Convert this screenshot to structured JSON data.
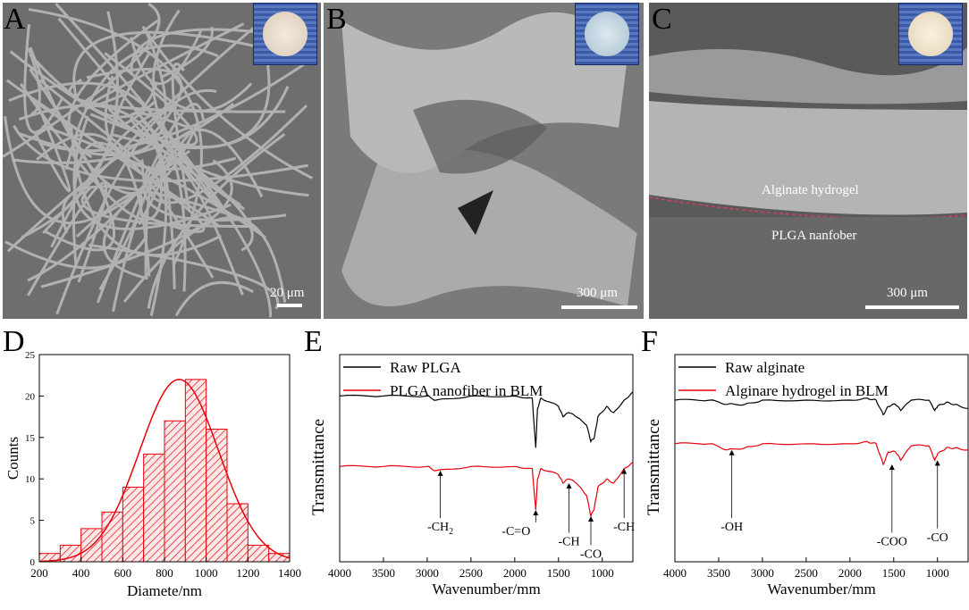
{
  "panels": {
    "A": {
      "letter": "A",
      "scale": "20 μm"
    },
    "B": {
      "letter": "B",
      "scale": "300 μm"
    },
    "C": {
      "letter": "C",
      "scale": "300 μm",
      "label_top": "Alginate hydrogel",
      "label_bottom": "PLGA nanfober"
    },
    "D": {
      "letter": "D"
    },
    "E": {
      "letter": "E"
    },
    "F": {
      "letter": "F"
    }
  },
  "colors": {
    "black_series": "#000000",
    "red_series": "#e8000b",
    "hist_fill": "#e8000b"
  },
  "chart_data": [
    {
      "type": "bar",
      "panel": "D",
      "xlabel": "Diamete/nm",
      "ylabel": "Counts",
      "xlim": [
        200,
        1400
      ],
      "ylim": [
        0,
        25
      ],
      "x_ticks": [
        200,
        400,
        600,
        800,
        1000,
        1200,
        1400
      ],
      "y_ticks": [
        0,
        5,
        10,
        15,
        20,
        25
      ],
      "bin_edges": [
        200,
        300,
        400,
        500,
        600,
        700,
        800,
        900,
        1000,
        1100,
        1200,
        1300,
        1400
      ],
      "values": [
        1,
        2,
        4,
        6,
        9,
        13,
        17,
        22,
        16,
        7,
        2,
        1
      ],
      "fit": {
        "type": "gaussian",
        "mean": 870,
        "sd": 190,
        "peak": 22
      }
    },
    {
      "type": "line",
      "panel": "E",
      "xlabel": "Wavenumber/mm",
      "ylabel": "Transmittance",
      "xlim": [
        4000,
        650
      ],
      "x_ticks": [
        4000,
        3500,
        3000,
        2500,
        2000,
        1500,
        1000
      ],
      "legend": "top-left",
      "series": [
        {
          "name": "Raw PLGA",
          "color": "#000000",
          "x": [
            4000,
            3500,
            3000,
            2900,
            2500,
            2000,
            1800,
            1760,
            1740,
            1700,
            1500,
            1450,
            1380,
            1300,
            1180,
            1130,
            1090,
            1050,
            950,
            870,
            750,
            650
          ],
          "y": [
            0.8,
            0.8,
            0.8,
            0.78,
            0.8,
            0.8,
            0.79,
            0.55,
            0.74,
            0.79,
            0.75,
            0.7,
            0.72,
            0.7,
            0.66,
            0.58,
            0.6,
            0.7,
            0.75,
            0.72,
            0.78,
            0.82
          ]
        },
        {
          "name": "PLGA nanofiber in BLM",
          "color": "#e8000b",
          "x": [
            4000,
            3500,
            3000,
            2900,
            2500,
            2000,
            1800,
            1760,
            1740,
            1700,
            1500,
            1450,
            1380,
            1300,
            1180,
            1130,
            1090,
            1050,
            950,
            870,
            750,
            650
          ],
          "y": [
            0.46,
            0.46,
            0.46,
            0.44,
            0.46,
            0.46,
            0.45,
            0.25,
            0.4,
            0.45,
            0.42,
            0.38,
            0.4,
            0.38,
            0.32,
            0.22,
            0.26,
            0.36,
            0.4,
            0.38,
            0.45,
            0.48
          ]
        }
      ],
      "annotations": [
        "-CH2",
        "-C=O",
        "-CH",
        "-CO",
        "-CH"
      ]
    },
    {
      "type": "line",
      "panel": "F",
      "xlabel": "Wavenumber/mm",
      "ylabel": "Transmittance",
      "xlim": [
        4000,
        650
      ],
      "x_ticks": [
        4000,
        3500,
        3000,
        2500,
        2000,
        1500,
        1000
      ],
      "legend": "top-left",
      "series": [
        {
          "name": "Raw alginate",
          "color": "#000000",
          "x": [
            4000,
            3600,
            3400,
            3200,
            3000,
            2500,
            2000,
            1800,
            1700,
            1620,
            1560,
            1480,
            1420,
            1300,
            1100,
            1030,
            1000,
            900,
            800,
            650
          ],
          "y": [
            0.78,
            0.78,
            0.76,
            0.76,
            0.78,
            0.78,
            0.78,
            0.79,
            0.78,
            0.71,
            0.75,
            0.76,
            0.73,
            0.78,
            0.78,
            0.73,
            0.75,
            0.77,
            0.76,
            0.74
          ]
        },
        {
          "name": "Alginare hydrogel in BLM",
          "color": "#e8000b",
          "x": [
            4000,
            3600,
            3400,
            3200,
            3000,
            2500,
            2000,
            1800,
            1700,
            1620,
            1560,
            1480,
            1420,
            1300,
            1100,
            1030,
            1000,
            900,
            800,
            650
          ],
          "y": [
            0.57,
            0.57,
            0.54,
            0.55,
            0.57,
            0.57,
            0.57,
            0.58,
            0.57,
            0.47,
            0.53,
            0.53,
            0.49,
            0.56,
            0.56,
            0.49,
            0.52,
            0.55,
            0.55,
            0.54
          ]
        }
      ],
      "annotations": [
        "-OH",
        "-COO",
        "-CO"
      ]
    }
  ],
  "annotations_text": {
    "E": [
      "-CH",
      "2",
      "-C=O",
      "-CH",
      "-CO",
      "-CH"
    ],
    "F": [
      "-OH",
      "-COO",
      "-CO"
    ]
  }
}
